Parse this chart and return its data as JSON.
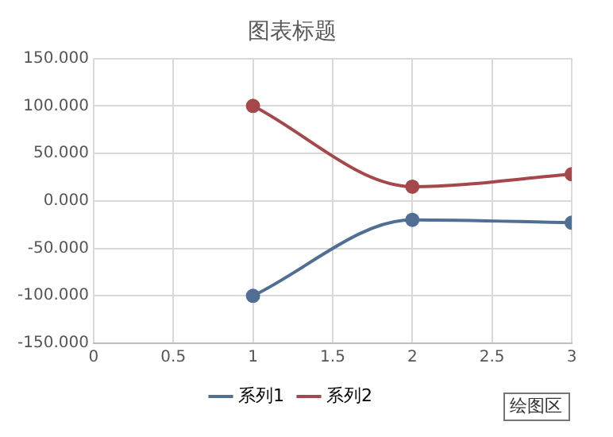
{
  "chart_data": {
    "type": "line",
    "title": "图表标题",
    "xlim": [
      0,
      3
    ],
    "xticks": [
      0,
      0.5,
      1,
      1.5,
      2,
      2.5,
      3
    ],
    "ylim": [
      -150,
      150
    ],
    "yticks": [
      {
        "value": -150,
        "label": "-150.000"
      },
      {
        "value": -100,
        "label": "-100.000"
      },
      {
        "value": -50,
        "label": "-50.000"
      },
      {
        "value": 0,
        "label": "0.000"
      },
      {
        "value": 50,
        "label": "50.000"
      },
      {
        "value": 100,
        "label": "100.000"
      },
      {
        "value": 150,
        "label": "150.000"
      }
    ],
    "x": [
      1,
      2,
      3
    ],
    "series": [
      {
        "name": "系列1",
        "color": "#4f6f94",
        "values": [
          -100,
          -20,
          -23
        ]
      },
      {
        "name": "系列2",
        "color": "#a4484b",
        "values": [
          100,
          15,
          28
        ]
      }
    ],
    "grid": true,
    "legend": "bottom",
    "marker": "circle",
    "line_style": "solid",
    "annotations": [
      "绘图区"
    ]
  }
}
